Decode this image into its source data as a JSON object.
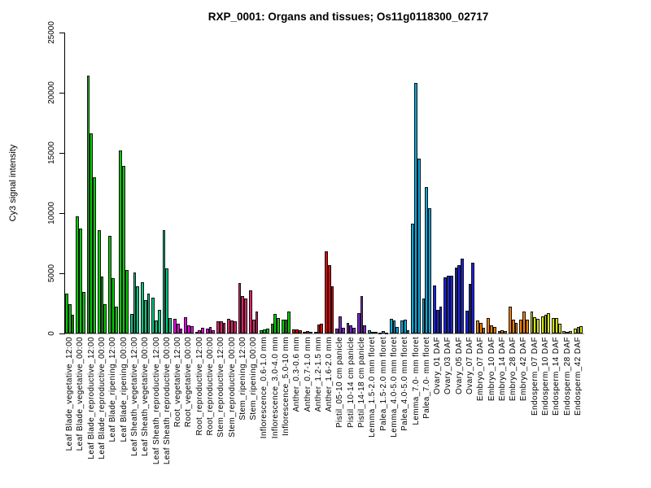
{
  "title": "RXP_0001: Organs and tissues; Os11g0118300_02717",
  "chart_data": {
    "type": "bar",
    "title": "RXP_0001: Organs and tissues; Os11g0118300_02717",
    "xlabel": "",
    "ylabel": "Cy3 signal intensity",
    "ylim": [
      0,
      25000
    ],
    "yticks": [
      "0",
      "5000",
      "10000",
      "15000",
      "20000",
      "25000"
    ],
    "grid": false,
    "legend": "none",
    "bars_per_group": 3,
    "colors": {
      "leaf_blade": "#00CC00",
      "leaf_sheath": "#00C882",
      "root": "#EE00EE",
      "stem": "#E02468",
      "inflorescence": "#00CC00",
      "anther": "#E80000",
      "pistil": "#7A24CC",
      "lemma_palea": "#00A9E0",
      "ovary": "#1A22DD",
      "embryo": "#F57F00",
      "endosperm": "#D5E500"
    },
    "groups": [
      {
        "label": "Leaf Blade_vegetative_12:00",
        "color": "leaf_blade",
        "values": [
          3330,
          2400,
          1530
        ]
      },
      {
        "label": "Leaf Blade_vegetative_00:00",
        "color": "leaf_blade",
        "values": [
          9700,
          8700,
          3450
        ]
      },
      {
        "label": "Leaf Blade_reproductive_12:00",
        "color": "leaf_blade",
        "values": [
          21400,
          16650,
          13000
        ]
      },
      {
        "label": "Leaf Blade_reproductive_00:00",
        "color": "leaf_blade",
        "values": [
          8600,
          4700,
          2450
        ]
      },
      {
        "label": "Leaf Blade_ripening_12:00",
        "color": "leaf_blade",
        "values": [
          8100,
          4600,
          2250
        ]
      },
      {
        "label": "Leaf Blade_ripening_00:00",
        "color": "leaf_blade",
        "values": [
          15200,
          13900,
          5300
        ]
      },
      {
        "label": "Leaf Sheath_vegetative_12:00",
        "color": "leaf_sheath",
        "values": [
          1650,
          5050,
          3920
        ]
      },
      {
        "label": "Leaf Sheath_vegetative_00:00",
        "color": "leaf_sheath",
        "values": [
          4280,
          2790,
          3290
        ]
      },
      {
        "label": "Leaf Sheath_reproductive_12:00",
        "color": "leaf_sheath",
        "values": [
          2950,
          1080,
          1980
        ]
      },
      {
        "label": "Leaf Sheath_reproductive_00:00",
        "color": "leaf_sheath",
        "values": [
          8550,
          5430,
          1280
        ]
      },
      {
        "label": "Root_vegetative_12:00",
        "color": "root",
        "values": [
          1240,
          830,
          400
        ]
      },
      {
        "label": "Root_vegetative_00:00",
        "color": "root",
        "values": [
          1350,
          700,
          620
        ]
      },
      {
        "label": "Root_reproductive_12:00",
        "color": "root",
        "values": [
          150,
          300,
          450
        ]
      },
      {
        "label": "Root_reproductive_00:00",
        "color": "root",
        "values": [
          400,
          560,
          280
        ]
      },
      {
        "label": "Stem_reproductive_12:00",
        "color": "stem",
        "values": [
          1000,
          990,
          900
        ]
      },
      {
        "label": "Stem_reproductive_00:00",
        "color": "stem",
        "values": [
          1220,
          1060,
          990
        ]
      },
      {
        "label": "Stem_ripening_12:00",
        "color": "stem",
        "values": [
          4200,
          3080,
          2890
        ]
      },
      {
        "label": "Stem_ripening_00:00",
        "color": "stem",
        "values": [
          3550,
          1150,
          1800
        ]
      },
      {
        "label": "Inflorescence_0.6-1.0 mm",
        "color": "inflorescence",
        "values": [
          250,
          320,
          420
        ]
      },
      {
        "label": "Inflorescence_3.0-4.0 mm",
        "color": "inflorescence",
        "values": [
          790,
          1620,
          1280
        ]
      },
      {
        "label": "Inflorescence_5.0-10 mm",
        "color": "inflorescence",
        "values": [
          1130,
          1130,
          1800
        ]
      },
      {
        "label": "Anther_0.3-0.6 mm",
        "color": "anther",
        "values": [
          320,
          330,
          300
        ]
      },
      {
        "label": "Anther_0.7-1.0 mm",
        "color": "anther",
        "values": [
          160,
          230,
          160
        ]
      },
      {
        "label": "Anther_1.2-1.5 mm",
        "color": "anther",
        "values": [
          110,
          720,
          810
        ]
      },
      {
        "label": "Anther_1.6-2.0 mm",
        "color": "anther",
        "values": [
          6800,
          5700,
          3900
        ]
      },
      {
        "label": "Pistil_05-10 cm panicle",
        "color": "pistil",
        "values": [
          400,
          1450,
          450
        ]
      },
      {
        "label": "Pistil_10-14 cm panicle",
        "color": "pistil",
        "values": [
          900,
          680,
          450
        ]
      },
      {
        "label": "Pistil_14-18 cm panicle",
        "color": "pistil",
        "values": [
          1700,
          3100,
          650
        ]
      },
      {
        "label": "Lemma_1.5-2.0 mm floret",
        "color": "lemma_palea",
        "values": [
          250,
          160,
          120
        ]
      },
      {
        "label": "Palea_1.5-2.0 mm floret",
        "color": "lemma_palea",
        "values": [
          100,
          180,
          100
        ]
      },
      {
        "label": "Lemma_4.0-5.0 mm floret",
        "color": "lemma_palea",
        "values": [
          1190,
          1060,
          550
        ]
      },
      {
        "label": "Palea_4.0-5.0 mm floret",
        "color": "lemma_palea",
        "values": [
          1080,
          1130,
          280
        ]
      },
      {
        "label": "Lemma_7.0- mm floret",
        "color": "lemma_palea",
        "values": [
          9100,
          20800,
          14500
        ]
      },
      {
        "label": "Palea_7.0- mm floret",
        "color": "lemma_palea",
        "values": [
          2900,
          12150,
          10400
        ]
      },
      {
        "label": "Ovary_01 DAF",
        "color": "ovary",
        "values": [
          4000,
          1960,
          2230
        ]
      },
      {
        "label": "Ovary_03 DAF",
        "color": "ovary",
        "values": [
          4660,
          4800,
          4800
        ]
      },
      {
        "label": "Ovary_05 DAF",
        "color": "ovary",
        "values": [
          5500,
          5700,
          6200
        ]
      },
      {
        "label": "Ovary_07 DAF",
        "color": "ovary",
        "values": [
          1900,
          4100,
          5900
        ]
      },
      {
        "label": "Embryo_07 DAF",
        "color": "embryo",
        "values": [
          1100,
          850,
          500
        ]
      },
      {
        "label": "Embryo_10 DAF",
        "color": "embryo",
        "values": [
          1300,
          700,
          520
        ]
      },
      {
        "label": "Embryo_14 DAF",
        "color": "embryo",
        "values": [
          230,
          280,
          190
        ]
      },
      {
        "label": "Embryo_28 DAF",
        "color": "embryo",
        "values": [
          2200,
          1170,
          900
        ]
      },
      {
        "label": "Embryo_42 DAF",
        "color": "embryo",
        "values": [
          1130,
          1800,
          1130
        ]
      },
      {
        "label": "Endosperm_07 DAF",
        "color": "endosperm",
        "values": [
          1850,
          1350,
          1240
        ]
      },
      {
        "label": "Endosperm_10 DAF",
        "color": "endosperm",
        "values": [
          1400,
          1580,
          1690
        ]
      },
      {
        "label": "Endosperm_14 DAF",
        "color": "endosperm",
        "values": [
          1280,
          1280,
          790
        ]
      },
      {
        "label": "Endosperm_28 DAF",
        "color": "endosperm",
        "values": [
          230,
          160,
          230
        ]
      },
      {
        "label": "Endosperm_42 DAF",
        "color": "endosperm",
        "values": [
          410,
          560,
          610
        ]
      }
    ]
  }
}
